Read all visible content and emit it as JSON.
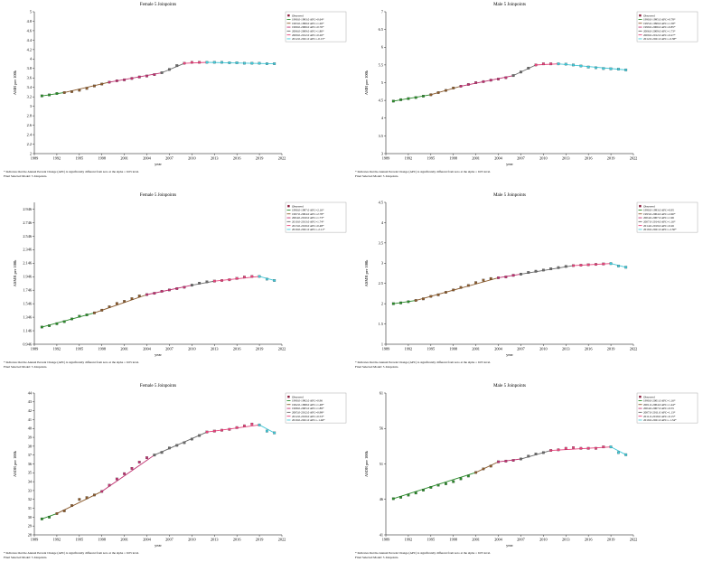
{
  "footnote": "* Indicates that the Annual Percent Change (APC) is significantly different from zero at the alpha = 0.05 level.",
  "chart_data": [
    {
      "type": "line",
      "title": "Female 5 Joinpoints",
      "xlabel": "year",
      "ylabel": "ASIR per 100k",
      "xlim": [
        1989,
        2022
      ],
      "x_ticks": [
        "1989",
        "1992",
        "1995",
        "1998",
        "2001",
        "2004",
        "2007",
        "2010",
        "2013",
        "2016",
        "2019",
        "2022"
      ],
      "ylim": [
        2,
        5
      ],
      "y_ticks": [
        "2",
        "2.2",
        "2.4",
        "2.6",
        "2.8",
        "3",
        "3.2",
        "3.4",
        "3.6",
        "3.8",
        "4",
        "4.2",
        "4.4",
        "4.6",
        "4.8",
        "5"
      ],
      "x": [
        1990,
        1991,
        1992,
        1993,
        1994,
        1995,
        1996,
        1997,
        1998,
        1999,
        2000,
        2001,
        2002,
        2003,
        2004,
        2005,
        2006,
        2007,
        2008,
        2009,
        2010,
        2011,
        2012,
        2013,
        2014,
        2015,
        2016,
        2017,
        2018,
        2019,
        2020,
        2021
      ],
      "observed": [
        3.22,
        3.24,
        3.27,
        3.29,
        3.31,
        3.34,
        3.38,
        3.43,
        3.47,
        3.51,
        3.54,
        3.56,
        3.59,
        3.62,
        3.64,
        3.67,
        3.71,
        3.78,
        3.86,
        3.91,
        3.93,
        3.93,
        3.93,
        3.93,
        3.93,
        3.92,
        3.92,
        3.91,
        3.91,
        3.91,
        3.9,
        3.9
      ],
      "legend_observed": "Observed",
      "series": [
        {
          "name": "1990.0-1993.0 APC=0.64*",
          "color": "#2a8c2a",
          "start": 1990,
          "end": 1993,
          "y_start": 3.22,
          "y_end": 3.29
        },
        {
          "name": "1993.0-1999.0 APC=1.26*",
          "color": "#8b5a2b",
          "start": 1993,
          "end": 1999,
          "y_start": 3.29,
          "y_end": 3.51
        },
        {
          "name": "1999.0-2006.0 APC=0.76*",
          "color": "#c03070",
          "start": 1999,
          "end": 2006,
          "y_start": 3.51,
          "y_end": 3.71
        },
        {
          "name": "2006.0-2009.0 APC=1.80*",
          "color": "#6a6a6a",
          "start": 2006,
          "end": 2009,
          "y_start": 3.71,
          "y_end": 3.91
        },
        {
          "name": "2009.0-2012.0 APC=0.26*",
          "color": "#e8407a",
          "start": 2009,
          "end": 2012,
          "y_start": 3.91,
          "y_end": 3.93
        },
        {
          "name": "2012.0-2021.0 APC=-0.15*",
          "color": "#40c8d8",
          "start": 2012,
          "end": 2021,
          "y_start": 3.93,
          "y_end": 3.9
        }
      ],
      "notes": [
        "Final Selected Model: 5 Joinpoints."
      ]
    },
    {
      "type": "line",
      "title": "Male 5 Joinpoints",
      "xlabel": "year",
      "ylabel": "ASIR per 100k",
      "xlim": [
        1989,
        2022
      ],
      "x_ticks": [
        "1989",
        "1992",
        "1995",
        "1998",
        "2001",
        "2004",
        "2007",
        "2010",
        "2013",
        "2016",
        "2019",
        "2022"
      ],
      "ylim": [
        3,
        7
      ],
      "y_ticks": [
        "3",
        "3.5",
        "4",
        "4.5",
        "5",
        "5.5",
        "6",
        "6.5",
        "7"
      ],
      "x": [
        1990,
        1991,
        1992,
        1993,
        1994,
        1995,
        1996,
        1997,
        1998,
        1999,
        2000,
        2001,
        2002,
        2003,
        2004,
        2005,
        2006,
        2007,
        2008,
        2009,
        2010,
        2011,
        2012,
        2013,
        2014,
        2015,
        2016,
        2017,
        2018,
        2019,
        2020,
        2021
      ],
      "observed": [
        4.48,
        4.52,
        4.55,
        4.58,
        4.62,
        4.66,
        4.72,
        4.78,
        4.85,
        4.9,
        4.95,
        5.0,
        5.03,
        5.07,
        5.1,
        5.14,
        5.2,
        5.3,
        5.41,
        5.5,
        5.53,
        5.53,
        5.53,
        5.52,
        5.5,
        5.47,
        5.44,
        5.42,
        5.4,
        5.39,
        5.38,
        5.36
      ],
      "legend_observed": "Observed",
      "series": [
        {
          "name": "1990.0-1995.0 APC=0.78*",
          "color": "#2a8c2a",
          "start": 1990,
          "end": 1995,
          "y_start": 4.48,
          "y_end": 4.66
        },
        {
          "name": "1995.0-1999.0 APC=1.58*",
          "color": "#8b5a2b",
          "start": 1995,
          "end": 1999,
          "y_start": 4.66,
          "y_end": 4.9
        },
        {
          "name": "1999.0-2006.0 APC=0.85*",
          "color": "#c03070",
          "start": 1999,
          "end": 2006,
          "y_start": 4.9,
          "y_end": 5.2
        },
        {
          "name": "2006.0-2009.0 APC=1.73*",
          "color": "#6a6a6a",
          "start": 2006,
          "end": 2009,
          "y_start": 5.2,
          "y_end": 5.5
        },
        {
          "name": "2009.0-2012.0 APC=0.27*",
          "color": "#e8407a",
          "start": 2009,
          "end": 2012,
          "y_start": 5.5,
          "y_end": 5.53
        },
        {
          "name": "2012.0-2021.0 APC=-0.38*",
          "color": "#40c8d8",
          "start": 2012,
          "end": 2021,
          "y_start": 5.53,
          "y_end": 5.36
        }
      ],
      "notes": [
        "Final Selected Model: 5 Joinpoints."
      ]
    },
    {
      "type": "line",
      "title": "Female 5 Joinpoints",
      "xlabel": "year",
      "ylabel": "ASMR per 100k",
      "xlim": [
        1989,
        2022
      ],
      "x_ticks": [
        "1989",
        "1992",
        "1995",
        "1998",
        "2001",
        "2004",
        "2007",
        "2010",
        "2013",
        "2016",
        "2019",
        "2022"
      ],
      "ylim": [
        0.946,
        3.046
      ],
      "y_ticks": [
        "0.946",
        "1.146",
        "1.346",
        "1.546",
        "1.746",
        "1.946",
        "2.146",
        "2.346",
        "2.546",
        "2.746",
        "2.946"
      ],
      "x": [
        1990,
        1991,
        1992,
        1993,
        1994,
        1995,
        1996,
        1997,
        1998,
        1999,
        2000,
        2001,
        2002,
        2003,
        2004,
        2005,
        2006,
        2007,
        2008,
        2009,
        2010,
        2011,
        2012,
        2013,
        2014,
        2015,
        2016,
        2017,
        2018,
        2019,
        2020,
        2021
      ],
      "observed": [
        1.2,
        1.22,
        1.25,
        1.28,
        1.32,
        1.36,
        1.38,
        1.41,
        1.45,
        1.5,
        1.55,
        1.58,
        1.62,
        1.66,
        1.68,
        1.7,
        1.73,
        1.75,
        1.77,
        1.79,
        1.82,
        1.85,
        1.87,
        1.88,
        1.89,
        1.9,
        1.92,
        1.94,
        1.95,
        1.95,
        1.91,
        1.89
      ],
      "legend_observed": "Observed",
      "series": [
        {
          "name": "1990.0-1997.0 APC=2.16*",
          "color": "#2a8c2a",
          "start": 1990,
          "end": 1997,
          "y_start": 1.2,
          "y_end": 1.41
        },
        {
          "name": "1997.0-2004.0 APC=2.78*",
          "color": "#8b5a2b",
          "start": 1997,
          "end": 2004,
          "y_start": 1.41,
          "y_end": 1.68
        },
        {
          "name": "2004.0-2010.0 APC=1.73*",
          "color": "#c03070",
          "start": 2004,
          "end": 2010,
          "y_start": 1.68,
          "y_end": 1.82
        },
        {
          "name": "2010.0-2013.0 APC=1.74*",
          "color": "#6a6a6a",
          "start": 2010,
          "end": 2013,
          "y_start": 1.82,
          "y_end": 1.88
        },
        {
          "name": "2013.0-2019.0 APC=0.48*",
          "color": "#e8407a",
          "start": 2013,
          "end": 2019,
          "y_start": 1.88,
          "y_end": 1.95
        },
        {
          "name": "2019.0-2021.0 APC=-2.11*",
          "color": "#40c8d8",
          "start": 2019,
          "end": 2021,
          "y_start": 1.95,
          "y_end": 1.89
        }
      ],
      "notes": [
        "Final Selected Model: 5 Joinpoints."
      ]
    },
    {
      "type": "line",
      "title": "Male 5 Joinpoints",
      "xlabel": "year",
      "ylabel": "ASMR per 100k",
      "xlim": [
        1989,
        2022
      ],
      "x_ticks": [
        "1989",
        "1992",
        "1995",
        "1998",
        "2001",
        "2004",
        "2007",
        "2010",
        "2013",
        "2016",
        "2019",
        "2022"
      ],
      "ylim": [
        1,
        4.5
      ],
      "y_ticks": [
        "1",
        "1.5",
        "2",
        "2.5",
        "3",
        "3.5",
        "4",
        "4.5"
      ],
      "x": [
        1990,
        1991,
        1992,
        1993,
        1994,
        1995,
        1996,
        1997,
        1998,
        1999,
        2000,
        2001,
        2002,
        2003,
        2004,
        2005,
        2006,
        2007,
        2008,
        2009,
        2010,
        2011,
        2012,
        2013,
        2014,
        2015,
        2016,
        2017,
        2018,
        2019,
        2020,
        2021
      ],
      "observed": [
        2.0,
        2.02,
        2.05,
        2.08,
        2.12,
        2.18,
        2.22,
        2.28,
        2.34,
        2.4,
        2.45,
        2.52,
        2.58,
        2.62,
        2.64,
        2.66,
        2.7,
        2.73,
        2.77,
        2.8,
        2.83,
        2.86,
        2.89,
        2.92,
        2.94,
        2.95,
        2.96,
        2.97,
        2.98,
        2.99,
        2.93,
        2.9
      ],
      "legend_observed": "Observed",
      "series": [
        {
          "name": "1990.0-1993.0 APC=0.95",
          "color": "#2a8c2a",
          "start": 1990,
          "end": 1993,
          "y_start": 2.0,
          "y_end": 2.08
        },
        {
          "name": "1993.0-2004.0 APC=2.60*",
          "color": "#8b5a2b",
          "start": 1993,
          "end": 2004,
          "y_start": 2.08,
          "y_end": 2.64
        },
        {
          "name": "2004.0-2007.0 APC=1.96",
          "color": "#c03070",
          "start": 2004,
          "end": 2007,
          "y_start": 2.64,
          "y_end": 2.73
        },
        {
          "name": "2007.0-2014.0 APC=1.16*",
          "color": "#6a6a6a",
          "start": 2007,
          "end": 2014,
          "y_start": 2.73,
          "y_end": 2.94
        },
        {
          "name": "2014.0-2019.0 APC=0.26",
          "color": "#e8407a",
          "start": 2014,
          "end": 2019,
          "y_start": 2.94,
          "y_end": 2.99
        },
        {
          "name": "2019.0-2021.0 APC=-2.50*",
          "color": "#40c8d8",
          "start": 2019,
          "end": 2021,
          "y_start": 2.99,
          "y_end": 2.9
        }
      ],
      "notes": [
        "Final Selected Model: 5 Joinpoints."
      ]
    },
    {
      "type": "line",
      "title": "Female 5 Joinpoints",
      "xlabel": "year",
      "ylabel": "ASDR per 100k",
      "xlim": [
        1989,
        2022
      ],
      "x_ticks": [
        "1989",
        "1992",
        "1995",
        "1998",
        "2001",
        "2004",
        "2007",
        "2010",
        "2013",
        "2016",
        "2019",
        "2022"
      ],
      "ylim": [
        28,
        44
      ],
      "y_ticks": [
        "28",
        "29",
        "30",
        "31",
        "32",
        "33",
        "34",
        "35",
        "36",
        "37",
        "38",
        "39",
        "40",
        "41",
        "42",
        "43",
        "44"
      ],
      "x": [
        1990,
        1991,
        1992,
        1993,
        1994,
        1995,
        1996,
        1997,
        1998,
        1999,
        2000,
        2001,
        2002,
        2003,
        2004,
        2005,
        2006,
        2007,
        2008,
        2009,
        2010,
        2011,
        2012,
        2013,
        2014,
        2015,
        2016,
        2017,
        2018,
        2019,
        2020,
        2021
      ],
      "observed": [
        29.8,
        30.0,
        30.4,
        30.7,
        31.3,
        32.0,
        32.2,
        32.5,
        32.9,
        33.6,
        34.3,
        34.9,
        35.5,
        36.2,
        36.7,
        37.0,
        37.3,
        37.8,
        38.1,
        38.4,
        38.8,
        39.2,
        39.6,
        39.7,
        39.8,
        39.9,
        40.1,
        40.3,
        40.5,
        40.4,
        39.7,
        39.5
      ],
      "legend_observed": "Observed",
      "series": [
        {
          "name": "1990.0-1992.0 APC=0.96",
          "color": "#2a8c2a",
          "start": 1990,
          "end": 1992,
          "y_start": 29.8,
          "y_end": 30.4
        },
        {
          "name": "1992.0-1998.0 APC=1.48*",
          "color": "#8b5a2b",
          "start": 1992,
          "end": 1998,
          "y_start": 30.4,
          "y_end": 32.9
        },
        {
          "name": "1998.0-2005.0 APC=1.89*",
          "color": "#c03070",
          "start": 1998,
          "end": 2005,
          "y_start": 32.9,
          "y_end": 37.0
        },
        {
          "name": "2005.0-2012.0 APC=0.98*",
          "color": "#6a6a6a",
          "start": 2005,
          "end": 2012,
          "y_start": 37.0,
          "y_end": 39.6
        },
        {
          "name": "2012.0-2019.0 APC=0.53*",
          "color": "#e8407a",
          "start": 2012,
          "end": 2019,
          "y_start": 39.6,
          "y_end": 40.4
        },
        {
          "name": "2019.0-2021.0 APC=-1.46*",
          "color": "#40c8d8",
          "start": 2019,
          "end": 2021,
          "y_start": 40.4,
          "y_end": 39.5
        }
      ],
      "notes": [
        "Final Selected Model: 5 Joinpoints."
      ]
    },
    {
      "type": "line",
      "title": "Male 5 Joinpoints",
      "xlabel": "year",
      "ylabel": "ASDR per 100k",
      "xlim": [
        1989,
        2022
      ],
      "x_ticks": [
        "1989",
        "1992",
        "1995",
        "1998",
        "2001",
        "2004",
        "2007",
        "2010",
        "2013",
        "2016",
        "2019",
        "2022"
      ],
      "ylim": [
        41,
        61
      ],
      "y_ticks": [
        "41",
        "46",
        "51",
        "56",
        "61"
      ],
      "x": [
        1990,
        1991,
        1992,
        1993,
        1994,
        1995,
        1996,
        1997,
        1998,
        1999,
        2000,
        2001,
        2002,
        2003,
        2004,
        2005,
        2006,
        2007,
        2008,
        2009,
        2010,
        2011,
        2012,
        2013,
        2014,
        2015,
        2016,
        2017,
        2018,
        2019,
        2020,
        2021
      ],
      "observed": [
        46.1,
        46.3,
        46.6,
        46.9,
        47.3,
        47.7,
        48.0,
        48.2,
        48.5,
        48.9,
        49.3,
        49.8,
        50.3,
        50.7,
        51.3,
        51.4,
        51.5,
        51.7,
        52.1,
        52.4,
        52.6,
        52.9,
        53.0,
        53.2,
        53.3,
        53.2,
        53.2,
        53.2,
        53.4,
        53.4,
        52.6,
        52.3
      ],
      "legend_observed": "Observed",
      "series": [
        {
          "name": "1990.0-2001.0 APC=1.16*",
          "color": "#2a8c2a",
          "start": 1990,
          "end": 2001,
          "y_start": 46.1,
          "y_end": 49.8
        },
        {
          "name": "2001.0-2004.0 APC=1.44*",
          "color": "#8b5a2b",
          "start": 2001,
          "end": 2004,
          "y_start": 49.8,
          "y_end": 51.3
        },
        {
          "name": "2004.0-2007.0 APC=0.55",
          "color": "#c03070",
          "start": 2004,
          "end": 2007,
          "y_start": 51.3,
          "y_end": 51.7
        },
        {
          "name": "2007.0-2011.0 APC=1.13*",
          "color": "#6a6a6a",
          "start": 2007,
          "end": 2011,
          "y_start": 51.7,
          "y_end": 52.9
        },
        {
          "name": "2011.0-2019.0 APC=0.15*",
          "color": "#e8407a",
          "start": 2011,
          "end": 2019,
          "y_start": 52.9,
          "y_end": 53.4
        },
        {
          "name": "2019.0-2021.0 APC=-1.34*",
          "color": "#40c8d8",
          "start": 2019,
          "end": 2021,
          "y_start": 53.4,
          "y_end": 52.3
        }
      ],
      "notes": [
        "Final Selected Model: 5 Joinpoints."
      ]
    }
  ]
}
